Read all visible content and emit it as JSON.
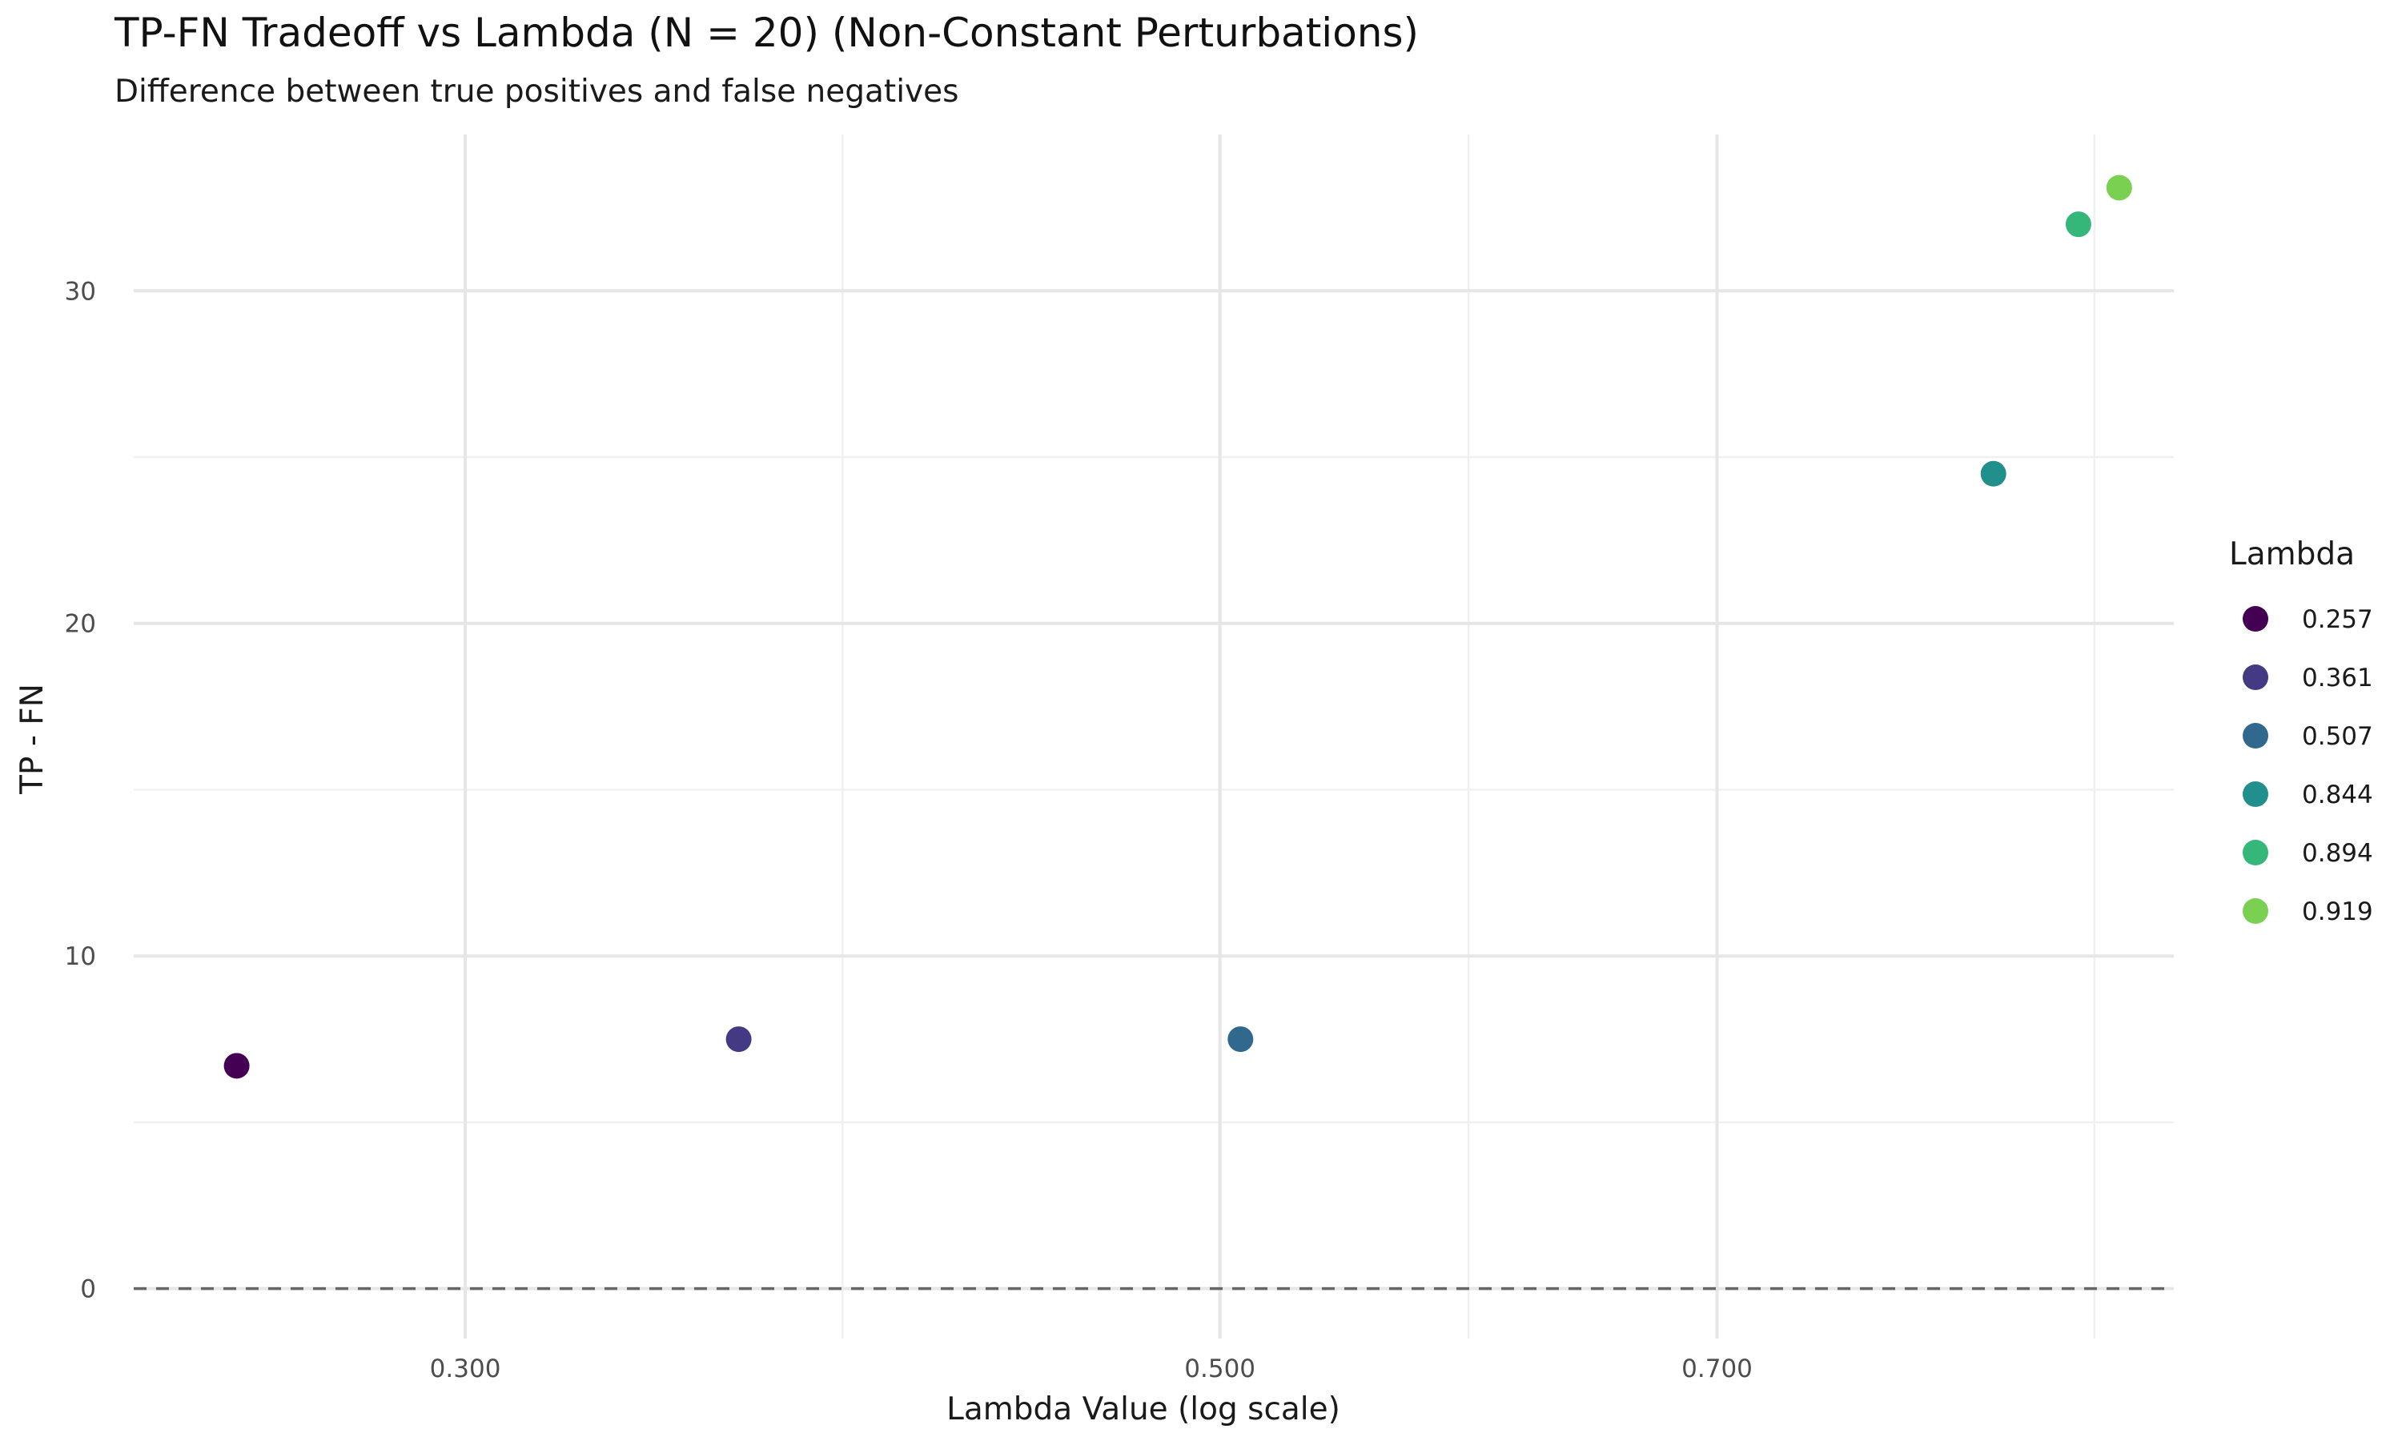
{
  "chart_data": {
    "type": "scatter",
    "title": "TP-FN Tradeoff vs Lambda (N = 20) (Non-Constant Perturbations)",
    "subtitle": "Difference between true positives and false negatives",
    "xlabel": "Lambda Value (log scale)",
    "ylabel": "TP - FN",
    "x_scale": "log10",
    "xlim": [
      0.2397,
      0.9536
    ],
    "ylim": [
      -1.5,
      34.7
    ],
    "x_ticks": [
      0.3,
      0.5,
      0.7
    ],
    "x_tick_labels": [
      "0.300",
      "0.500",
      "0.700"
    ],
    "y_ticks": [
      0,
      10,
      20,
      30
    ],
    "y_tick_labels": [
      "0",
      "10",
      "20",
      "30"
    ],
    "reference_line": {
      "y": 0,
      "style": "dashed"
    },
    "grid": true,
    "legend": {
      "title": "Lambda",
      "position": "right",
      "entries": [
        "0.257",
        "0.361",
        "0.507",
        "0.844",
        "0.894",
        "0.919"
      ]
    },
    "points": [
      {
        "x": 0.257,
        "y": 6.7,
        "label": "0.257",
        "color": "#440154"
      },
      {
        "x": 0.361,
        "y": 7.5,
        "label": "0.361",
        "color": "#443A83"
      },
      {
        "x": 0.507,
        "y": 7.5,
        "label": "0.507",
        "color": "#31688E"
      },
      {
        "x": 0.844,
        "y": 24.5,
        "label": "0.844",
        "color": "#21908C"
      },
      {
        "x": 0.894,
        "y": 32.0,
        "label": "0.894",
        "color": "#35B779"
      },
      {
        "x": 0.919,
        "y": 33.1,
        "label": "0.919",
        "color": "#7AD151"
      }
    ]
  }
}
